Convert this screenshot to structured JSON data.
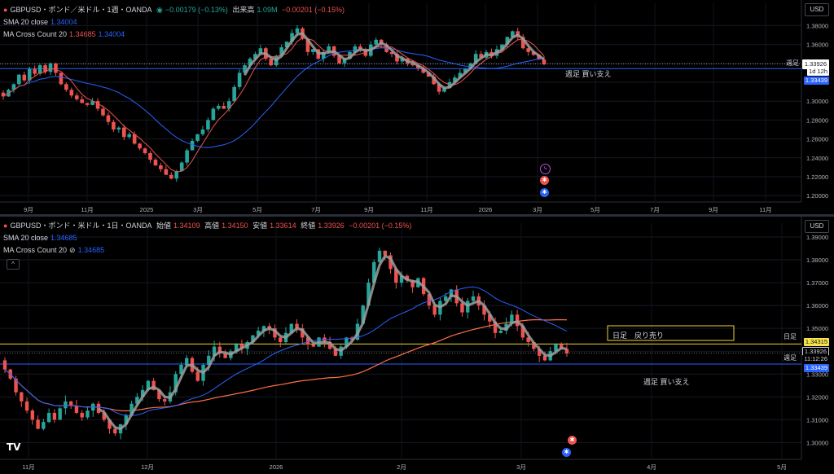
{
  "top": {
    "title": "GBPUSD・ポンド／米ドル・1週・OANDA",
    "change": "−0.00179 (−0.13%)",
    "volume_label": "出来高",
    "volume_value": "1.09M",
    "volume_change": "−0.00201 (−0.15%)",
    "sma_label": "SMA 20 close",
    "sma_value": "1.34004",
    "mac_label": "MA Cross Count 20",
    "mac_v1": "1.34685",
    "mac_v2": "1.34004",
    "currency": "USD",
    "price_tag": "1.33926",
    "countdown_tag": "1d 12h",
    "support_tag": "1.33439",
    "support_side": "週足",
    "zone_label": "週足 買い支え",
    "collapse_glyph": "^"
  },
  "bot": {
    "title": "GBPUSD・ポンド・米ドル・1日・OANDA",
    "o_label": "始値",
    "o": "1.34109",
    "h_label": "高値",
    "h": "1.34150",
    "l_label": "安値",
    "l": "1.33614",
    "c_label": "終値",
    "c": "1.33926",
    "chg": "−0.00201 (−0.15%)",
    "sma_label": "SMA 20 close",
    "sma_value": "1.34685",
    "mac_label": "MA Cross Count 20",
    "mac_icon": "⊘",
    "mac_value": "1.34685",
    "currency": "USD",
    "resist_tag": "1.34315",
    "price_tag": "1.33926",
    "countdown_tag": "11:12:26",
    "support_tag": "1.33439",
    "resist_side": "日足",
    "support_side": "週足",
    "zone_resist_label": "日足　戻り売り",
    "zone_support_label": "週足 買い支え",
    "logo": "TV",
    "collapse_glyph": "^"
  },
  "colors": {
    "up": "#26a69a",
    "down": "#ef5350",
    "sma": "#2962ff",
    "ma_cross": "#ef5350",
    "zigzag": "#9e9e9e",
    "support": "#2962ff",
    "resist": "#f0d43a",
    "resist_tag": "#f7e34a",
    "price_tag": "#ffffff",
    "long_ma": "#ff7043"
  },
  "chart_data": [
    {
      "type": "candlestick",
      "title": "GBPUSD・ポンド／米ドル・1週・OANDA",
      "y_ticks": [
        "1.38000",
        "1.36000",
        "1.34000",
        "1.32000",
        "1.30000",
        "1.28000",
        "1.26000",
        "1.24000",
        "1.22000",
        "1.20000"
      ],
      "ylim": [
        1.195,
        1.395
      ],
      "x_ticks": [
        "9月",
        "11月",
        "2025",
        "3月",
        "5月",
        "7月",
        "9月",
        "11月",
        "2026",
        "3月",
        "5月",
        "7月",
        "9月",
        "11月"
      ],
      "series": [
        {
          "name": "SMA 20 close",
          "last": 1.34004
        },
        {
          "name": "MA Cross Count 20",
          "last": 1.34685
        }
      ],
      "support_level": 1.33439,
      "close": 1.33926,
      "closes": [
        1.305,
        1.312,
        1.318,
        1.328,
        1.322,
        1.334,
        1.329,
        1.338,
        1.331,
        1.34,
        1.33,
        1.318,
        1.312,
        1.306,
        1.302,
        1.298,
        1.296,
        1.3,
        1.292,
        1.285,
        1.278,
        1.27,
        1.272,
        1.262,
        1.265,
        1.255,
        1.25,
        1.245,
        1.238,
        1.232,
        1.228,
        1.222,
        1.218,
        1.226,
        1.235,
        1.248,
        1.258,
        1.265,
        1.27,
        1.28,
        1.292,
        1.295,
        1.292,
        1.3,
        1.315,
        1.33,
        1.338,
        1.345,
        1.35,
        1.356,
        1.345,
        1.338,
        1.348,
        1.357,
        1.363,
        1.372,
        1.377,
        1.366,
        1.352,
        1.355,
        1.345,
        1.352,
        1.358,
        1.348,
        1.34,
        1.345,
        1.352,
        1.358,
        1.355,
        1.348,
        1.36,
        1.365,
        1.36,
        1.352,
        1.35,
        1.342,
        1.345,
        1.34,
        1.338,
        1.335,
        1.33,
        1.326,
        1.318,
        1.31,
        1.314,
        1.32,
        1.325,
        1.33,
        1.334,
        1.34,
        1.35,
        1.346,
        1.352,
        1.348,
        1.355,
        1.36,
        1.368,
        1.374,
        1.368,
        1.356,
        1.352,
        1.349,
        1.344,
        1.339
      ]
    },
    {
      "type": "candlestick",
      "title": "GBPUSD・ポンド・米ドル・1日・OANDA",
      "y_ticks": [
        "1.39000",
        "1.38000",
        "1.37000",
        "1.36000",
        "1.35000",
        "1.34000",
        "1.33000",
        "1.32000",
        "1.31000",
        "1.30000"
      ],
      "ylim": [
        1.2955,
        1.3925
      ],
      "x_ticks": [
        "11月",
        "12月",
        "2026",
        "2月",
        "3月",
        "4月",
        "5月"
      ],
      "series": [
        {
          "name": "SMA 20 close",
          "last": 1.34685
        },
        {
          "name": "MA Cross Count 20",
          "last": 1.34685
        }
      ],
      "resistance_level": 1.34315,
      "support_level": 1.33439,
      "close": 1.33926,
      "ohlc": {
        "open": 1.34109,
        "high": 1.3415,
        "low": 1.33614,
        "close": 1.33926
      },
      "closes": [
        1.332,
        1.328,
        1.322,
        1.318,
        1.314,
        1.31,
        1.306,
        1.309,
        1.313,
        1.31,
        1.315,
        1.318,
        1.316,
        1.313,
        1.311,
        1.314,
        1.317,
        1.313,
        1.31,
        1.306,
        1.304,
        1.308,
        1.312,
        1.317,
        1.32,
        1.323,
        1.327,
        1.323,
        1.319,
        1.318,
        1.322,
        1.33,
        1.334,
        1.337,
        1.331,
        1.327,
        1.334,
        1.338,
        1.342,
        1.339,
        1.337,
        1.34,
        1.343,
        1.341,
        1.344,
        1.347,
        1.349,
        1.351,
        1.35,
        1.346,
        1.344,
        1.348,
        1.352,
        1.35,
        1.346,
        1.343,
        1.342,
        1.346,
        1.344,
        1.341,
        1.338,
        1.342,
        1.346,
        1.345,
        1.352,
        1.36,
        1.37,
        1.379,
        1.384,
        1.382,
        1.376,
        1.37,
        1.373,
        1.371,
        1.368,
        1.372,
        1.365,
        1.36,
        1.356,
        1.362,
        1.364,
        1.367,
        1.361,
        1.357,
        1.362,
        1.364,
        1.36,
        1.356,
        1.353,
        1.348,
        1.349,
        1.352,
        1.356,
        1.351,
        1.346,
        1.344,
        1.341,
        1.338,
        1.336,
        1.34,
        1.343,
        1.341,
        1.339
      ]
    }
  ]
}
